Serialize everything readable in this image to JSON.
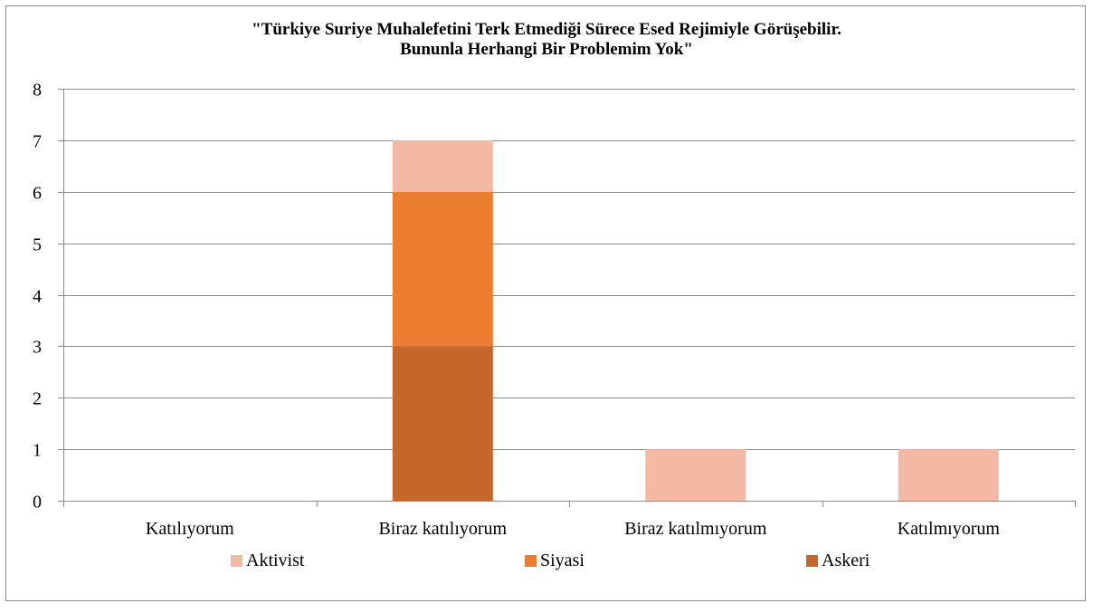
{
  "chart_data": {
    "type": "bar",
    "stacked": true,
    "title_lines": [
      "\"Türkiye Suriye Muhalefetini Terk Etmediği Sürece Esed Rejimiyle Görüşebilir.",
      "Bununla Herhangi Bir Problemim Yok\""
    ],
    "categories": [
      "Katılıyorum",
      "Biraz katılıyorum",
      "Biraz katılmıyorum",
      "Katılmıyorum"
    ],
    "series": [
      {
        "name": "Askeri",
        "values": [
          0,
          3,
          0,
          0
        ],
        "color": "#c5662b"
      },
      {
        "name": "Siyasi",
        "values": [
          0,
          3,
          0,
          0
        ],
        "color": "#ed7d31"
      },
      {
        "name": "Aktivist",
        "values": [
          0,
          1,
          1,
          1
        ],
        "color": "#f4b9a4"
      }
    ],
    "legend_order": [
      "Aktivist",
      "Siyasi",
      "Askeri"
    ],
    "legend_position": "bottom",
    "ylim": [
      0,
      8
    ],
    "yticks": [
      0,
      1,
      2,
      3,
      4,
      5,
      6,
      7,
      8
    ],
    "grid": true,
    "xlabel": "",
    "ylabel": ""
  }
}
